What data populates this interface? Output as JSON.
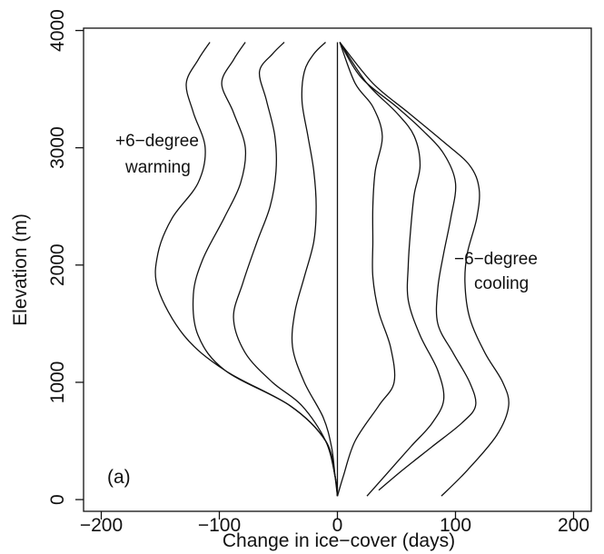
{
  "chart_data": {
    "type": "line",
    "xlabel": "Change in ice−cover (days)",
    "ylabel": "Elevation (m)",
    "xlim": [
      -215,
      215
    ],
    "ylim": [
      -100,
      4020
    ],
    "x_ticks": [
      -200,
      -100,
      0,
      100,
      200
    ],
    "x_tick_labels": [
      "−200",
      "−100",
      "0",
      "100",
      "200"
    ],
    "y_ticks": [
      0,
      1000,
      2000,
      3000,
      4000
    ],
    "y_tick_labels": [
      "0",
      "1000",
      "2000",
      "3000",
      "4000"
    ],
    "grid": false,
    "annotations": {
      "warming_line1": "+6−degree",
      "warming_line2": "warming",
      "cooling_line1": "−6−degree",
      "cooling_line2": "cooling",
      "panel_label": "(a)"
    },
    "series": [
      {
        "points": [
          [
            0,
            30
          ],
          [
            -2,
            200
          ],
          [
            -10,
            500
          ],
          [
            -40,
            800
          ],
          [
            -95,
            1100
          ],
          [
            -130,
            1400
          ],
          [
            -152,
            1800
          ],
          [
            -152,
            2100
          ],
          [
            -140,
            2400
          ],
          [
            -118,
            2700
          ],
          [
            -112,
            3000
          ],
          [
            -122,
            3300
          ],
          [
            -128,
            3550
          ],
          [
            -118,
            3750
          ],
          [
            -108,
            3900
          ]
        ]
      },
      {
        "points": [
          [
            0,
            30
          ],
          [
            -2,
            200
          ],
          [
            -10,
            500
          ],
          [
            -40,
            800
          ],
          [
            -95,
            1100
          ],
          [
            -118,
            1400
          ],
          [
            -122,
            1750
          ],
          [
            -114,
            2050
          ],
          [
            -96,
            2400
          ],
          [
            -82,
            2700
          ],
          [
            -78,
            3000
          ],
          [
            -88,
            3300
          ],
          [
            -98,
            3550
          ],
          [
            -88,
            3750
          ],
          [
            -78,
            3900
          ]
        ]
      },
      {
        "points": [
          [
            0,
            30
          ],
          [
            -2,
            200
          ],
          [
            -10,
            500
          ],
          [
            -30,
            800
          ],
          [
            -55,
            1000
          ],
          [
            -78,
            1250
          ],
          [
            -88,
            1550
          ],
          [
            -80,
            1850
          ],
          [
            -68,
            2200
          ],
          [
            -57,
            2500
          ],
          [
            -52,
            2800
          ],
          [
            -53,
            3100
          ],
          [
            -60,
            3400
          ],
          [
            -66,
            3650
          ],
          [
            -55,
            3800
          ],
          [
            -45,
            3900
          ]
        ]
      },
      {
        "points": [
          [
            0,
            30
          ],
          [
            -2,
            200
          ],
          [
            -5,
            450
          ],
          [
            -12,
            700
          ],
          [
            -28,
            1000
          ],
          [
            -38,
            1300
          ],
          [
            -36,
            1600
          ],
          [
            -28,
            1900
          ],
          [
            -20,
            2200
          ],
          [
            -18,
            2500
          ],
          [
            -20,
            2800
          ],
          [
            -25,
            3100
          ],
          [
            -30,
            3400
          ],
          [
            -28,
            3650
          ],
          [
            -20,
            3800
          ],
          [
            -10,
            3900
          ]
        ]
      },
      {
        "points": [
          [
            0,
            30
          ],
          [
            0,
            3900
          ]
        ]
      },
      {
        "points": [
          [
            0,
            30
          ],
          [
            5,
            200
          ],
          [
            15,
            500
          ],
          [
            35,
            800
          ],
          [
            48,
            1000
          ],
          [
            45,
            1300
          ],
          [
            35,
            1600
          ],
          [
            30,
            1900
          ],
          [
            30,
            2200
          ],
          [
            30,
            2500
          ],
          [
            32,
            2800
          ],
          [
            38,
            3100
          ],
          [
            30,
            3350
          ],
          [
            15,
            3550
          ],
          [
            2,
            3900
          ]
        ]
      },
      {
        "points": [
          [
            25,
            30
          ],
          [
            40,
            200
          ],
          [
            62,
            450
          ],
          [
            80,
            650
          ],
          [
            90,
            850
          ],
          [
            85,
            1100
          ],
          [
            70,
            1400
          ],
          [
            60,
            1700
          ],
          [
            60,
            2000
          ],
          [
            62,
            2300
          ],
          [
            65,
            2600
          ],
          [
            70,
            2850
          ],
          [
            65,
            3100
          ],
          [
            50,
            3300
          ],
          [
            25,
            3550
          ],
          [
            2,
            3900
          ]
        ]
      },
      {
        "points": [
          [
            35,
            80
          ],
          [
            55,
            250
          ],
          [
            80,
            450
          ],
          [
            105,
            650
          ],
          [
            117,
            800
          ],
          [
            112,
            1000
          ],
          [
            98,
            1250
          ],
          [
            85,
            1500
          ],
          [
            85,
            1800
          ],
          [
            90,
            2100
          ],
          [
            96,
            2400
          ],
          [
            100,
            2700
          ],
          [
            90,
            2950
          ],
          [
            72,
            3150
          ],
          [
            50,
            3350
          ],
          [
            20,
            3600
          ],
          [
            2,
            3900
          ]
        ]
      },
      {
        "points": [
          [
            88,
            30
          ],
          [
            110,
            250
          ],
          [
            135,
            550
          ],
          [
            145,
            800
          ],
          [
            140,
            1000
          ],
          [
            125,
            1250
          ],
          [
            112,
            1550
          ],
          [
            108,
            1850
          ],
          [
            110,
            2100
          ],
          [
            118,
            2400
          ],
          [
            120,
            2650
          ],
          [
            112,
            2850
          ],
          [
            90,
            3050
          ],
          [
            60,
            3300
          ],
          [
            30,
            3550
          ],
          [
            2,
            3900
          ]
        ]
      }
    ]
  }
}
